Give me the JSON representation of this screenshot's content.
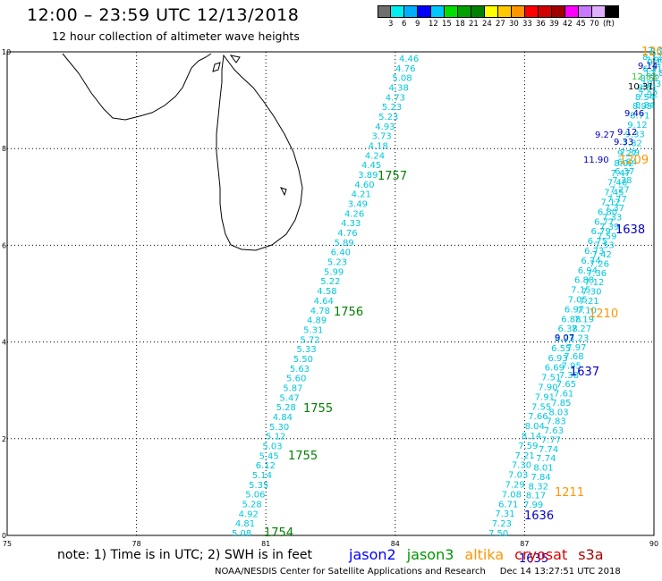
{
  "header": {
    "title": "12:00  –  23:59  UTC  12/13/2018",
    "subtitle": "12 hour collection of altimeter wave heights"
  },
  "legend": {
    "colors": [
      "#6f6f6f",
      "#00f0f0",
      "#00b0ff",
      "#0000ff",
      "#00c8ff",
      "#00e000",
      "#00a000",
      "#008000",
      "#ffff00",
      "#ffc800",
      "#ff9600",
      "#ff0000",
      "#d20000",
      "#a00000",
      "#ff00ff",
      "#c878ff",
      "#e0b0ff",
      "#000000"
    ],
    "labels": [
      "3",
      "6",
      "9",
      "12",
      "15",
      "18",
      "21",
      "24",
      "27",
      "30",
      "33",
      "36",
      "39",
      "42",
      "45",
      "70",
      "(ft)"
    ]
  },
  "axes": {
    "x_ticks": [
      "75",
      "78",
      "81",
      "84",
      "87",
      "90"
    ],
    "y_ticks": [
      "0",
      "2",
      "4",
      "6",
      "8",
      "10"
    ]
  },
  "tracks": [
    {
      "pass": "1754",
      "color": "#00c8dc",
      "values": [
        "5.08",
        "4.81",
        "4.92",
        "5.28",
        "5.06",
        "5.35",
        "5.14",
        "6.12",
        "5.45",
        "5.03",
        "5.12",
        "5.30",
        "4.84",
        "5.28",
        "5.47",
        "5.87",
        "5.60",
        "5.63",
        "5.50",
        "5.33",
        "5.72",
        "5.31",
        "4.89",
        "4.78",
        "4.64",
        "4.58",
        "5.22",
        "5.99",
        "5.23",
        "6.40",
        "5.89",
        "4.76",
        "4.33",
        "4.26",
        "3.49",
        "4.21",
        "4.60",
        "3.89",
        "4.45",
        "4.24",
        "4.18",
        "3.73",
        "4.93",
        "5.23",
        "5.23",
        "4.73",
        "4.38",
        "5.08",
        "4.76",
        "4.46"
      ]
    },
    {
      "pass": "1635",
      "color": "#00c8dc",
      "values": [
        "7.50",
        "7.23",
        "7.31",
        "6.71",
        "7.08",
        "7.29",
        "7.03",
        "7.30",
        "7.21",
        "7.59",
        "8.14",
        "8.04",
        "7.66",
        "7.55",
        "7.91",
        "7.90",
        "7.51",
        "6.69",
        "6.93",
        "6.55",
        "6.23",
        "6.38",
        "6.88",
        "6.97",
        "7.05",
        "7.15",
        "6.88",
        "6.94",
        "6.74",
        "6.73",
        "6.75",
        "6.79",
        "6.77",
        "6.80",
        "7.12",
        "7.45",
        "7.46",
        "7.47",
        "8.02",
        "9.27"
      ]
    },
    {
      "pass": "1636",
      "color": "#00c8dc",
      "values": [
        "7.99",
        "8.17",
        "8.32",
        "7.84",
        "8.01",
        "7.74",
        "7.74",
        "7.77",
        "7.63",
        "7.83",
        "8.03",
        "7.85",
        "7.61",
        "7.65",
        "7.38",
        "7.95",
        "7.68",
        "7.97",
        "7.23",
        "7.27",
        "7.19",
        "7.10",
        "7.21",
        "7.30",
        "7.12",
        "7.36",
        "7.26",
        "7.42",
        "7.53",
        "7.59",
        "7.39",
        "7.33",
        "7.37",
        "7.77",
        "7.27",
        "7.38",
        "6.37",
        "6.84",
        "7.39",
        "7.82",
        "9.33",
        "9.12",
        "8.71",
        "8.95",
        "8.54",
        "8.81",
        "8.52",
        "6.31",
        "7.96",
        "7.63"
      ]
    },
    {
      "pass": "1637",
      "color": "#00c8dc",
      "values": [
        "8.84",
        "7.92",
        "10.31",
        "12.83",
        "9.14",
        "8.72"
      ]
    }
  ],
  "special_values": [
    {
      "text": "9.07",
      "color": "#0000c8"
    },
    {
      "text": "11.90",
      "color": "#0000c8"
    },
    {
      "text": "9.27",
      "color": "#0000c8"
    },
    {
      "text": "9.33",
      "color": "#0000c8"
    },
    {
      "text": "9.12",
      "color": "#0000c8"
    },
    {
      "text": "9.46",
      "color": "#0000c8"
    },
    {
      "text": "10.31",
      "color": "#000000"
    },
    {
      "text": "9.14",
      "color": "#0000c8"
    },
    {
      "text": "12.83",
      "color": "#32c832"
    },
    {
      "text": "8.72",
      "color": "#00c8dc"
    }
  ],
  "pass_labels": [
    {
      "text": "1754",
      "color": "#008000"
    },
    {
      "text": "1755",
      "color": "#008000"
    },
    {
      "text": "1755",
      "color": "#008000"
    },
    {
      "text": "1756",
      "color": "#008000"
    },
    {
      "text": "1757",
      "color": "#008000"
    },
    {
      "text": "1635",
      "color": "#0000c8"
    },
    {
      "text": "1636",
      "color": "#0000c8"
    },
    {
      "text": "1637",
      "color": "#0000c8"
    },
    {
      "text": "1638",
      "color": "#0000c8"
    },
    {
      "text": "1211",
      "color": "#ff9600"
    },
    {
      "text": "1210",
      "color": "#ff9600"
    },
    {
      "text": "1209",
      "color": "#ff9600"
    },
    {
      "text": "120",
      "color": "#ff9600"
    }
  ],
  "footer": {
    "note": "note:  1) Time is in UTC;  2) SWH is in feet",
    "satellites": [
      {
        "name": "jason2",
        "color": "#0000ff"
      },
      {
        "name": "jason3",
        "color": "#009600"
      },
      {
        "name": "altika",
        "color": "#ff9600"
      },
      {
        "name": "cryosat",
        "color": "#e00000"
      },
      {
        "name": "s3a",
        "color": "#b00000"
      }
    ],
    "credit": "NOAA/NESDIS Center for Satellite Applications and Research     Dec 14 13:27:51 UTC 2018"
  }
}
